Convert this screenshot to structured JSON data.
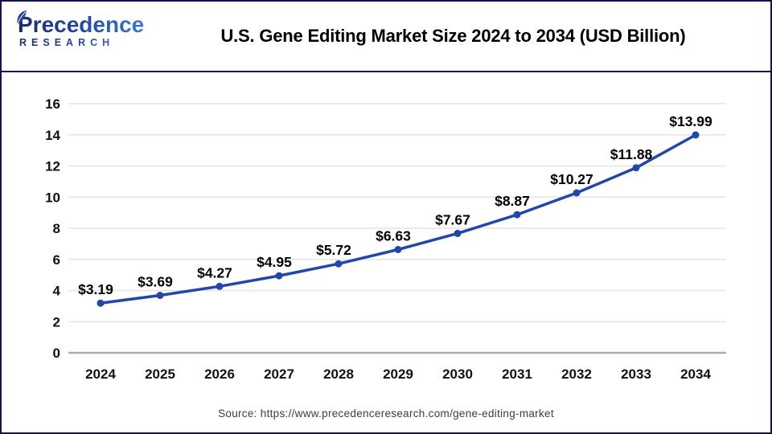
{
  "header": {
    "logo": {
      "brand": "Precedence",
      "sub": "RESEARCH"
    },
    "title": "U.S. Gene Editing Market Size 2024 to 2034 (USD Billion)"
  },
  "chart_data": {
    "type": "line",
    "title": "U.S. Gene Editing Market Size 2024 to 2034 (USD Billion)",
    "categories": [
      "2024",
      "2025",
      "2026",
      "2027",
      "2028",
      "2029",
      "2030",
      "2031",
      "2032",
      "2033",
      "2034"
    ],
    "values": [
      3.19,
      3.69,
      4.27,
      4.95,
      5.72,
      6.63,
      7.67,
      8.87,
      10.27,
      11.88,
      13.99
    ],
    "point_labels": [
      "$3.19",
      "$3.69",
      "$4.27",
      "$4.95",
      "$5.72",
      "$6.63",
      "$7.67",
      "$8.87",
      "$10.27",
      "$11.88",
      "$13.99"
    ],
    "xlabel": "",
    "ylabel": "",
    "ylim": [
      0,
      16
    ],
    "ytick_step": 2,
    "grid": true,
    "legend_position": "none",
    "line_color": "#2347a8",
    "point_color": "#2347a8",
    "label_color": "#000000",
    "axis_label_color": "#111111",
    "grid_color": "#e4e4e4",
    "baseline_color": "#ababab"
  },
  "footer": {
    "source": "Source: https://www.precedenceresearch.com/gene-editing-market"
  }
}
